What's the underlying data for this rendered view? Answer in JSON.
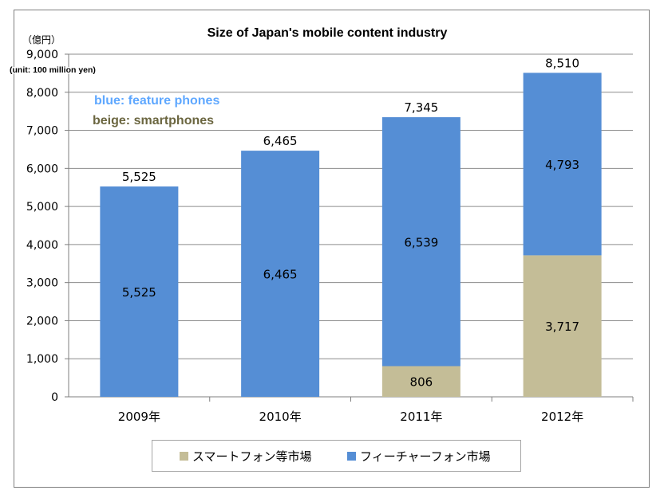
{
  "chart_data": {
    "type": "bar",
    "stacked": true,
    "title": "Size of Japan's mobile content industry",
    "unit_label_jp": "（億円）",
    "unit_label_en": "(unit: 100 million yen)",
    "annotations": [
      "blue: feature phones",
      "beige: smartphones"
    ],
    "categories": [
      "2009年",
      "2010年",
      "2011年",
      "2012年"
    ],
    "series": [
      {
        "name": "スマートフォン等市場",
        "color": "#c4bd97",
        "values": [
          0,
          0,
          806,
          3717
        ]
      },
      {
        "name": "フィーチャーフォン市場",
        "color": "#558ed5",
        "values": [
          5525,
          6465,
          6539,
          4793
        ]
      }
    ],
    "totals": [
      5525,
      6465,
      7345,
      8510
    ],
    "ylim": [
      0,
      9000
    ],
    "yticks": [
      0,
      1000,
      2000,
      3000,
      4000,
      5000,
      6000,
      7000,
      8000,
      9000
    ],
    "ytick_labels": [
      "0",
      "1,000",
      "2,000",
      "3,000",
      "4,000",
      "5,000",
      "6,000",
      "7,000",
      "8,000",
      "9,000"
    ],
    "grid": true,
    "legend_position": "bottom"
  }
}
